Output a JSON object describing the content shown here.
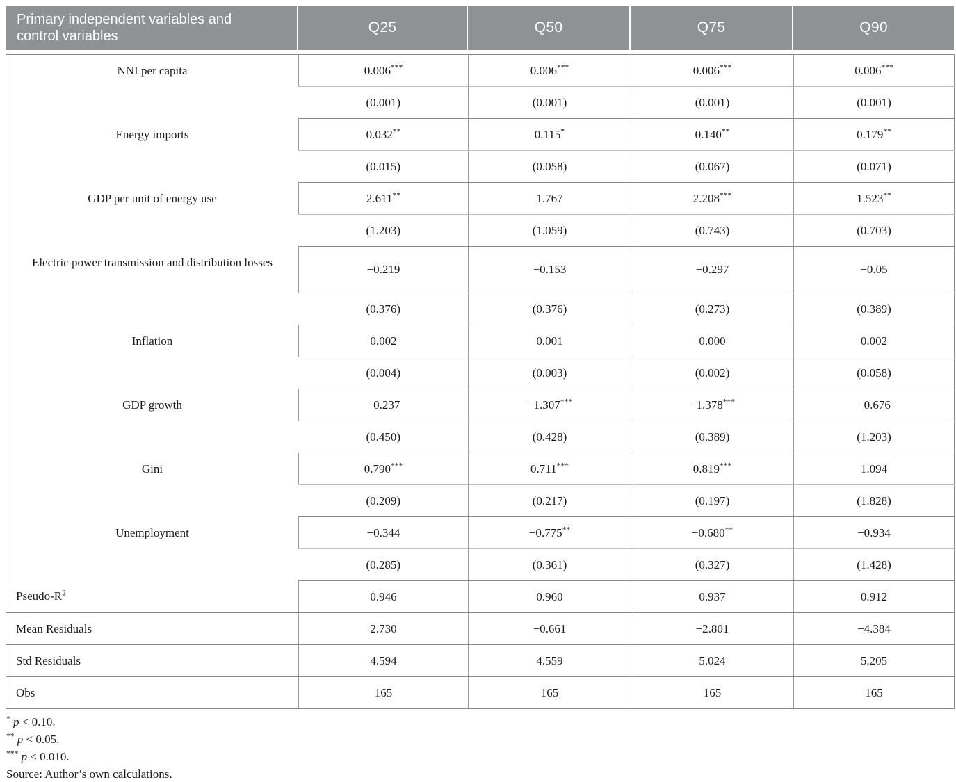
{
  "header": {
    "col1": "Primary independent variables and control variables",
    "quantiles": [
      "Q25",
      "Q50",
      "Q75",
      "Q90"
    ]
  },
  "rows": [
    {
      "label": "NNI per capita",
      "coefs": [
        {
          "v": "0.006",
          "s": "***"
        },
        {
          "v": "0.006",
          "s": "***"
        },
        {
          "v": "0.006",
          "s": "***"
        },
        {
          "v": "0.006",
          "s": "***"
        }
      ],
      "ses": [
        "(0.001)",
        "(0.001)",
        "(0.001)",
        "(0.001)"
      ]
    },
    {
      "label": "Energy imports",
      "coefs": [
        {
          "v": "0.032",
          "s": "**"
        },
        {
          "v": "0.115",
          "s": "*"
        },
        {
          "v": "0.140",
          "s": "**"
        },
        {
          "v": "0.179",
          "s": "**"
        }
      ],
      "ses": [
        "(0.015)",
        "(0.058)",
        "(0.067)",
        "(0.071)"
      ]
    },
    {
      "label": "GDP per unit of energy use",
      "coefs": [
        {
          "v": "2.611",
          "s": "**"
        },
        {
          "v": "1.767",
          "s": ""
        },
        {
          "v": "2.208",
          "s": "***"
        },
        {
          "v": "1.523",
          "s": "**"
        }
      ],
      "ses": [
        "(1.203)",
        "(1.059)",
        "(0.743)",
        "(0.703)"
      ]
    },
    {
      "label": "Electric power transmission and distribution losses",
      "coefs": [
        {
          "v": "−0.219",
          "s": ""
        },
        {
          "v": "−0.153",
          "s": ""
        },
        {
          "v": "−0.297",
          "s": ""
        },
        {
          "v": "−0.05",
          "s": ""
        }
      ],
      "ses": [
        "(0.376)",
        "(0.376)",
        "(0.273)",
        "(0.389)"
      ]
    },
    {
      "label": "Inflation",
      "coefs": [
        {
          "v": "0.002",
          "s": ""
        },
        {
          "v": "0.001",
          "s": ""
        },
        {
          "v": "0.000",
          "s": ""
        },
        {
          "v": "0.002",
          "s": ""
        }
      ],
      "ses": [
        "(0.004)",
        "(0.003)",
        "(0.002)",
        "(0.058)"
      ]
    },
    {
      "label": "GDP growth",
      "coefs": [
        {
          "v": "−0.237",
          "s": ""
        },
        {
          "v": "−1.307",
          "s": "***"
        },
        {
          "v": "−1.378",
          "s": "***"
        },
        {
          "v": "−0.676",
          "s": ""
        }
      ],
      "ses": [
        "(0.450)",
        "(0.428)",
        "(0.389)",
        "(1.203)"
      ]
    },
    {
      "label": "Gini",
      "coefs": [
        {
          "v": "0.790",
          "s": "***"
        },
        {
          "v": "0.711",
          "s": "***"
        },
        {
          "v": "0.819",
          "s": "***"
        },
        {
          "v": "1.094",
          "s": ""
        }
      ],
      "ses": [
        "(0.209)",
        "(0.217)",
        "(0.197)",
        "(1.828)"
      ]
    },
    {
      "label": "Unemployment",
      "coefs": [
        {
          "v": "−0.344",
          "s": ""
        },
        {
          "v": "−0.775",
          "s": "**"
        },
        {
          "v": "−0.680",
          "s": "**"
        },
        {
          "v": "−0.934",
          "s": ""
        }
      ],
      "ses": [
        "(0.285)",
        "(0.361)",
        "(0.327)",
        "(1.428)"
      ]
    }
  ],
  "stats": [
    {
      "label": "Pseudo-R",
      "sup": "2",
      "values": [
        "0.946",
        "0.960",
        "0.937",
        "0.912"
      ]
    },
    {
      "label": "Mean Residuals",
      "sup": "",
      "values": [
        "2.730",
        "−0.661",
        "−2.801",
        "−4.384"
      ]
    },
    {
      "label": "Std Residuals",
      "sup": "",
      "values": [
        "4.594",
        "4.559",
        "5.024",
        "5.205"
      ]
    },
    {
      "label": "Obs",
      "sup": "",
      "values": [
        "165",
        "165",
        "165",
        "165"
      ]
    }
  ],
  "footnotes": [
    {
      "marker": "*",
      "var": "p",
      "cond": " < 0.10."
    },
    {
      "marker": "**",
      "var": "p",
      "cond": " < 0.05."
    },
    {
      "marker": "***",
      "var": "p",
      "cond": " < 0.010."
    }
  ],
  "source": "Source: Author’s own calculations.",
  "colors": {
    "header_bg": "#8e9293",
    "header_text": "#ffffff",
    "group_border": "#8a8a8a",
    "sub_border": "#bdbdbd",
    "text": "#1b1b1b"
  }
}
